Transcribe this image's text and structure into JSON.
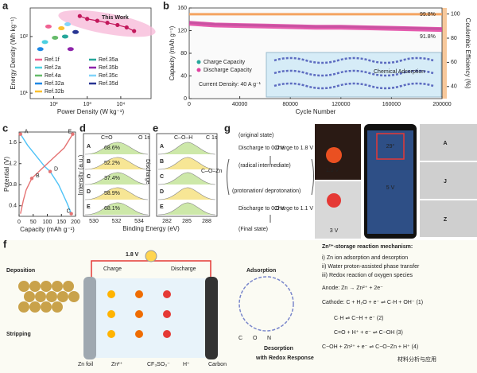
{
  "chart_data": [
    {
      "type": "scatter",
      "panel": "a",
      "xlabel": "Power Density (W kg⁻¹)",
      "ylabel": "Energy Density (Wh kg⁻¹)",
      "log_x": true,
      "log_y": true,
      "xlim": [
        20,
        80000
      ],
      "ylim": [
        8,
        320
      ],
      "xticks": [
        {
          "value": 100,
          "label": "10²"
        },
        {
          "value": 1000,
          "label": "10³"
        },
        {
          "value": 10000,
          "label": "10⁴"
        }
      ],
      "yticks": [
        {
          "value": 10,
          "label": "10¹"
        },
        {
          "value": 100,
          "label": "10²"
        }
      ],
      "series": [
        {
          "name": "This Work",
          "color": "#c2185b",
          "x": [
            600,
            1000,
            2000,
            4000,
            8000,
            15000,
            25000
          ],
          "values": [
            230,
            205,
            190,
            175,
            160,
            145,
            125
          ]
        },
        {
          "name": "Ref.1f",
          "color": "#f06292",
          "x": [
            70
          ],
          "values": [
            150
          ]
        },
        {
          "name": "Ref.2a",
          "color": "#4dd0e1",
          "x": [
            55
          ],
          "values": [
            80
          ]
        },
        {
          "name": "Ref.4a",
          "color": "#66bb6a",
          "x": [
            110
          ],
          "values": [
            95
          ]
        },
        {
          "name": "Ref.32a",
          "color": "#1e88e5",
          "x": [
            40
          ],
          "values": [
            60
          ]
        },
        {
          "name": "Ref.32b",
          "color": "#fbc02d",
          "x": [
            170
          ],
          "values": [
            140
          ]
        },
        {
          "name": "Ref.35a",
          "color": "#26a69a",
          "x": [
            220
          ],
          "values": [
            100
          ]
        },
        {
          "name": "Ref.35b",
          "color": "#8e24aa",
          "x": [
            320
          ],
          "values": [
            60
          ]
        },
        {
          "name": "Ref.35c",
          "color": "#81d4fa",
          "x": [
            260
          ],
          "values": [
            165
          ]
        },
        {
          "name": "Ref.35d",
          "color": "#283593",
          "x": [
            450
          ],
          "values": [
            120
          ]
        }
      ]
    },
    {
      "type": "line",
      "panel": "b",
      "xlabel": "Cycle Number",
      "ylabel": "Capacity (mAh g⁻¹)",
      "y2label": "Coulombic Efficiency (%)",
      "xlim": [
        0,
        200000
      ],
      "xticks": [
        0,
        40000,
        80000,
        120000,
        160000,
        200000
      ],
      "ylim": [
        0,
        160
      ],
      "yticks": [
        0,
        40,
        80,
        120,
        160
      ],
      "y2lim": [
        30,
        105
      ],
      "y2ticks": [
        40,
        60,
        80,
        100
      ],
      "x": [
        0,
        20000,
        40000,
        60000,
        80000,
        100000,
        120000,
        140000,
        160000,
        180000,
        200000
      ],
      "series": [
        {
          "name": "Charge Capacity",
          "color": "#26a69a",
          "values": [
            134,
            131,
            130,
            129,
            128,
            127,
            127,
            126,
            125,
            124,
            123
          ]
        },
        {
          "name": "Discharge Capacity",
          "color": "#e040a0",
          "values": [
            133,
            130,
            129,
            128,
            127,
            126,
            126,
            125,
            124,
            123,
            122
          ]
        },
        {
          "name": "Coulombic Efficiency",
          "color": "#f4a460",
          "axis": "y2",
          "values": [
            99.8,
            99.8,
            99.8,
            99.8,
            99.8,
            99.8,
            99.8,
            99.8,
            99.8,
            99.8,
            99.8
          ]
        }
      ],
      "annotations": [
        "99.8%",
        "91.8%",
        "Current Density: 40 A g⁻¹",
        "Chemical Adsorption"
      ]
    },
    {
      "type": "line",
      "panel": "c",
      "xlabel": "Capacity (mAh g⁻¹)",
      "ylabel": "Potential (V)",
      "xlim": [
        0,
        200
      ],
      "xticks": [
        0,
        50,
        100,
        150,
        200
      ],
      "ylim": [
        0.2,
        1.8
      ],
      "yticks": [
        0.4,
        0.8,
        1.2,
        1.6
      ],
      "series": [
        {
          "color": "#4fc3f7",
          "x": [
            5,
            30,
            60,
            90,
            110,
            140,
            170,
            185
          ],
          "values": [
            1.76,
            1.55,
            1.35,
            1.15,
            1.05,
            0.8,
            0.45,
            0.25
          ]
        },
        {
          "color": "#e57373",
          "x": [
            190,
            160,
            120,
            80,
            45,
            25,
            15,
            5
          ],
          "values": [
            1.76,
            1.5,
            1.3,
            1.1,
            0.92,
            0.7,
            0.5,
            0.25
          ]
        }
      ],
      "point_labels": [
        {
          "label": "A",
          "x": 5,
          "y": 1.76
        },
        {
          "label": "B",
          "x": 45,
          "y": 0.92
        },
        {
          "label": "C",
          "x": 185,
          "y": 0.25
        },
        {
          "label": "D",
          "x": 110,
          "y": 1.05
        },
        {
          "label": "E",
          "x": 190,
          "y": 1.76
        }
      ]
    }
  ],
  "figure": {
    "d": {
      "label": "d",
      "title": "C=O",
      "tag": "O 1s",
      "ylabel": "Intensity (a.u.)",
      "xticks": [
        530,
        532,
        534
      ],
      "rows": [
        "A",
        "B",
        "C",
        "D",
        "E"
      ],
      "percents": [
        "68.6%",
        "52.2%",
        "37.4%",
        "58.9%",
        "68.1%"
      ],
      "side": "Discharge"
    },
    "e": {
      "label": "e",
      "title": "C–O–H",
      "tag": "C 1s",
      "xticks": [
        282,
        285,
        288
      ],
      "rows": [
        "A",
        "B",
        "C",
        "D",
        "E"
      ],
      "annotation": "C–O–Zn"
    },
    "xlabel": "Binding Energy (eV)",
    "g": {
      "label": "g",
      "texts": [
        "(original state)",
        "Discharge to 0.0 V",
        "Charge to 1.8 V",
        "(radical intermediate)",
        "(protonation/ deprotonation)",
        "Discharge to 0.0 V",
        "Charge to 1.1 V",
        "(Final state)"
      ]
    },
    "h": {
      "label": "h",
      "texts": [
        "1.5 V",
        "3 V",
        "5 V",
        "29°"
      ]
    },
    "i": {
      "label": "i",
      "letters": [
        "A",
        "J",
        "Z"
      ]
    },
    "f": {
      "label": "f",
      "texts": [
        "Deposition",
        "Stripping",
        "1.8 V",
        "Charge",
        "Discharge",
        "Zn foil",
        "Zn²⁺",
        "CF₃SO₃⁻",
        "H⁺",
        "Carbon",
        "Adsorption",
        "Desorption",
        "with Redox Response",
        "C",
        "O",
        "N"
      ],
      "mechanism": [
        "Zn²⁺-storage reaction mechanism:",
        "i) Zn ion adsorption and desorption",
        "ii) Water proton-assisted phase transfer",
        "iii) Redox reaction of oxygen species",
        "Anode: Zn → Zn²⁺ + 2e⁻",
        "Cathode: C + H₂O + e⁻ ⇌ C·H + OH⁻   (1)",
        "C·H ⇌ C−H + e⁻   (2)",
        "C=O + H⁺ + e⁻ ⇌ C−OH   (3)",
        "C−OH + Zn²⁺ + e⁻ ⇌ C−O−Zn + H⁺   (4)"
      ],
      "watermark": "材料分析与应用"
    }
  }
}
